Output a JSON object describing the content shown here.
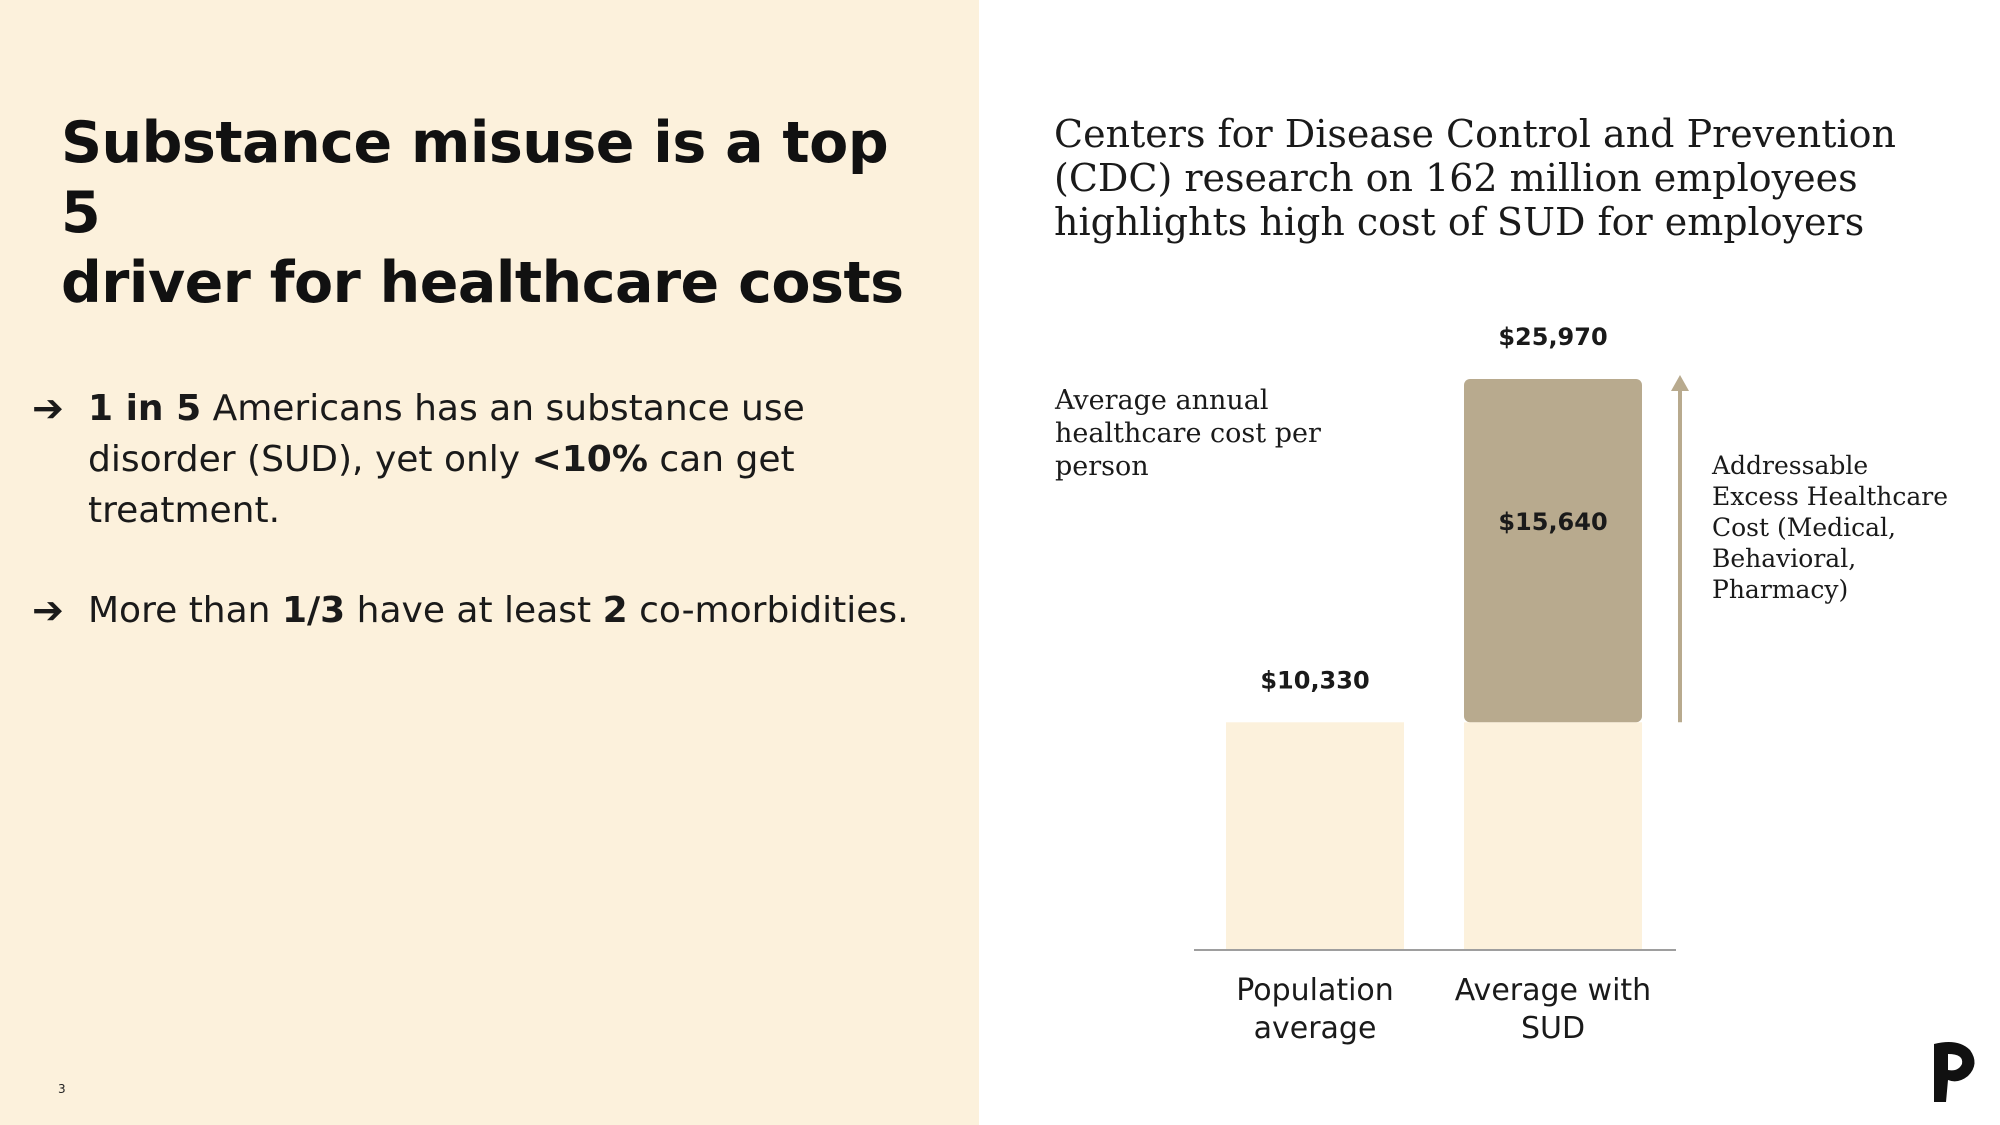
{
  "slide": {
    "title_line1": "Substance misuse is a top 5",
    "title_line2": "driver for healthcare costs",
    "page_number": "3",
    "bullets": [
      {
        "arrow": "➔",
        "parts": [
          {
            "bold": "1 in 5"
          },
          {
            "text": " Americans has an substance use disorder (SUD), yet only "
          },
          {
            "bold": "<10%"
          },
          {
            "text": " can get treatment."
          }
        ]
      },
      {
        "arrow": "➔",
        "parts": [
          {
            "text": "More than "
          },
          {
            "bold": "1/3"
          },
          {
            "text": " have at least "
          },
          {
            "bold": "2"
          },
          {
            "text": " co-morbidities."
          }
        ]
      }
    ]
  },
  "chart_header": {
    "title": "Centers for Disease Control and Prevention (CDC) research on 162 million employees highlights high cost of SUD for employers",
    "y_description": "Average annual healthcare cost per person",
    "excess_annotation": "Addressable Excess Healthcare Cost (Medical, Behavioral, Pharmacy)"
  },
  "colors": {
    "left_panel_bg": "#fcf1dc",
    "base_bar": "#fcf1dc",
    "excess_bar": "#b8aa8e",
    "axis": "#9e9e9e",
    "arrow": "#b8aa8e",
    "text": "#1a1a1a"
  },
  "chart_data": {
    "type": "bar",
    "stacked": true,
    "categories": [
      "Population\naverage",
      "Average with\nSUD"
    ],
    "series": [
      {
        "values": [
          10330,
          10330
        ]
      },
      {
        "values": [
          0,
          15640
        ]
      }
    ],
    "totals": [
      10330,
      25970
    ],
    "total_labels": [
      "$10,330",
      "$25,970"
    ],
    "segment_labels": [
      "",
      "$15,640"
    ],
    "ylim": [
      0,
      25970
    ],
    "grid": false,
    "legend": "none"
  }
}
